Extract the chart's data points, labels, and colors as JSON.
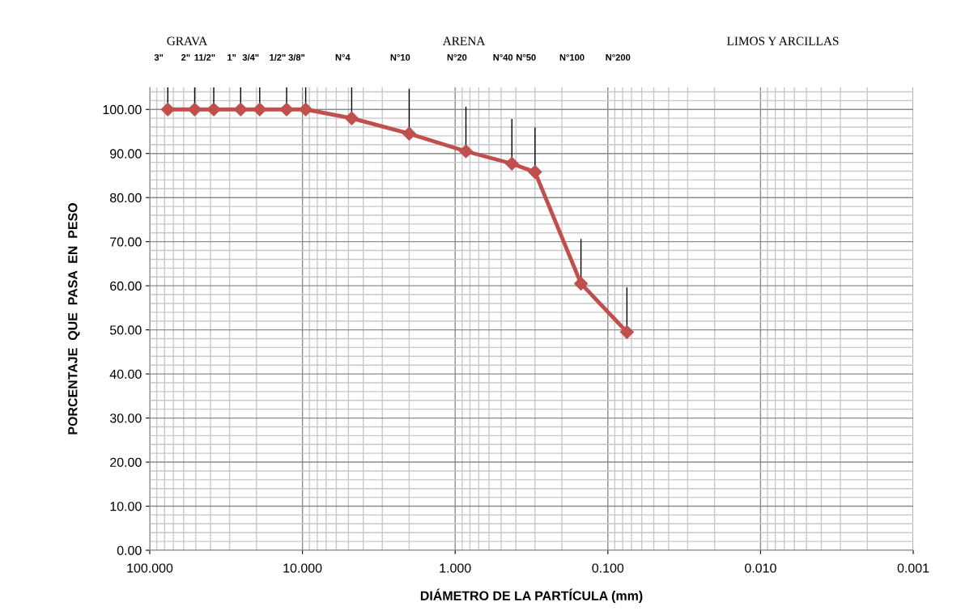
{
  "chart_data": {
    "type": "line",
    "xlabel": "DIÁMETRO DE LA PARTÍCULA (mm)",
    "ylabel": "PORCENTAJE  QUE  PASA  EN  PESO",
    "annotations": [
      "GRAVA",
      "ARENA",
      "LIMOS Y ARCILLAS",
      "3\"",
      "2\"",
      "11/2\"",
      "1\"",
      "3/4\"",
      "1/2\"",
      "3/8\"",
      "N°4",
      "N°10",
      "N°20",
      "N°40",
      "N°50",
      "N°100",
      "N°200"
    ],
    "x": [
      76.2,
      50.8,
      38.1,
      25.4,
      19.05,
      12.7,
      9.525,
      4.76,
      2.0,
      0.85,
      0.425,
      0.3,
      0.15,
      0.075
    ],
    "series": [
      {
        "color": "#c0504d",
        "values": [
          100,
          100,
          100,
          100,
          100,
          100,
          100,
          98.0,
          94.5,
          90.5,
          87.7,
          85.8,
          60.5,
          49.5
        ],
        "errors": [
          [
            100,
            105
          ],
          [
            100,
            105
          ],
          [
            100,
            105
          ],
          [
            100,
            105
          ],
          [
            100,
            105
          ],
          [
            100,
            105
          ],
          [
            100,
            105
          ],
          [
            98.0,
            105
          ],
          [
            94.5,
            104.5
          ],
          [
            90.5,
            100.5
          ],
          [
            87.7,
            97.7
          ],
          [
            85.8,
            95.8
          ],
          [
            60.5,
            70.5
          ],
          [
            49.5,
            59.5
          ]
        ]
      }
    ],
    "log": "x",
    "marker": "diamond",
    "line_style": "solid",
    "grid": true,
    "xlim": [
      100,
      0.001
    ],
    "xticks": [
      {
        "value": 100,
        "label": "100.000"
      },
      {
        "value": 10,
        "label": "10.000"
      },
      {
        "value": 1,
        "label": "1.000"
      },
      {
        "value": 0.1,
        "label": "0.100"
      },
      {
        "value": 0.01,
        "label": "0.010"
      },
      {
        "value": 0.001,
        "label": "0.001"
      }
    ],
    "ylim": [
      0,
      105
    ],
    "yticks": [
      {
        "value": 0,
        "label": "0.00"
      },
      {
        "value": 10,
        "label": "10.00"
      },
      {
        "value": 20,
        "label": "20.00"
      },
      {
        "value": 30,
        "label": "30.00"
      },
      {
        "value": 40,
        "label": "40.00"
      },
      {
        "value": 50,
        "label": "50.00"
      },
      {
        "value": 60,
        "label": "60.00"
      },
      {
        "value": 70,
        "label": "70.00"
      },
      {
        "value": 80,
        "label": "80.00"
      },
      {
        "value": 90,
        "label": "90.00"
      },
      {
        "value": 100,
        "label": "100.00"
      }
    ]
  }
}
